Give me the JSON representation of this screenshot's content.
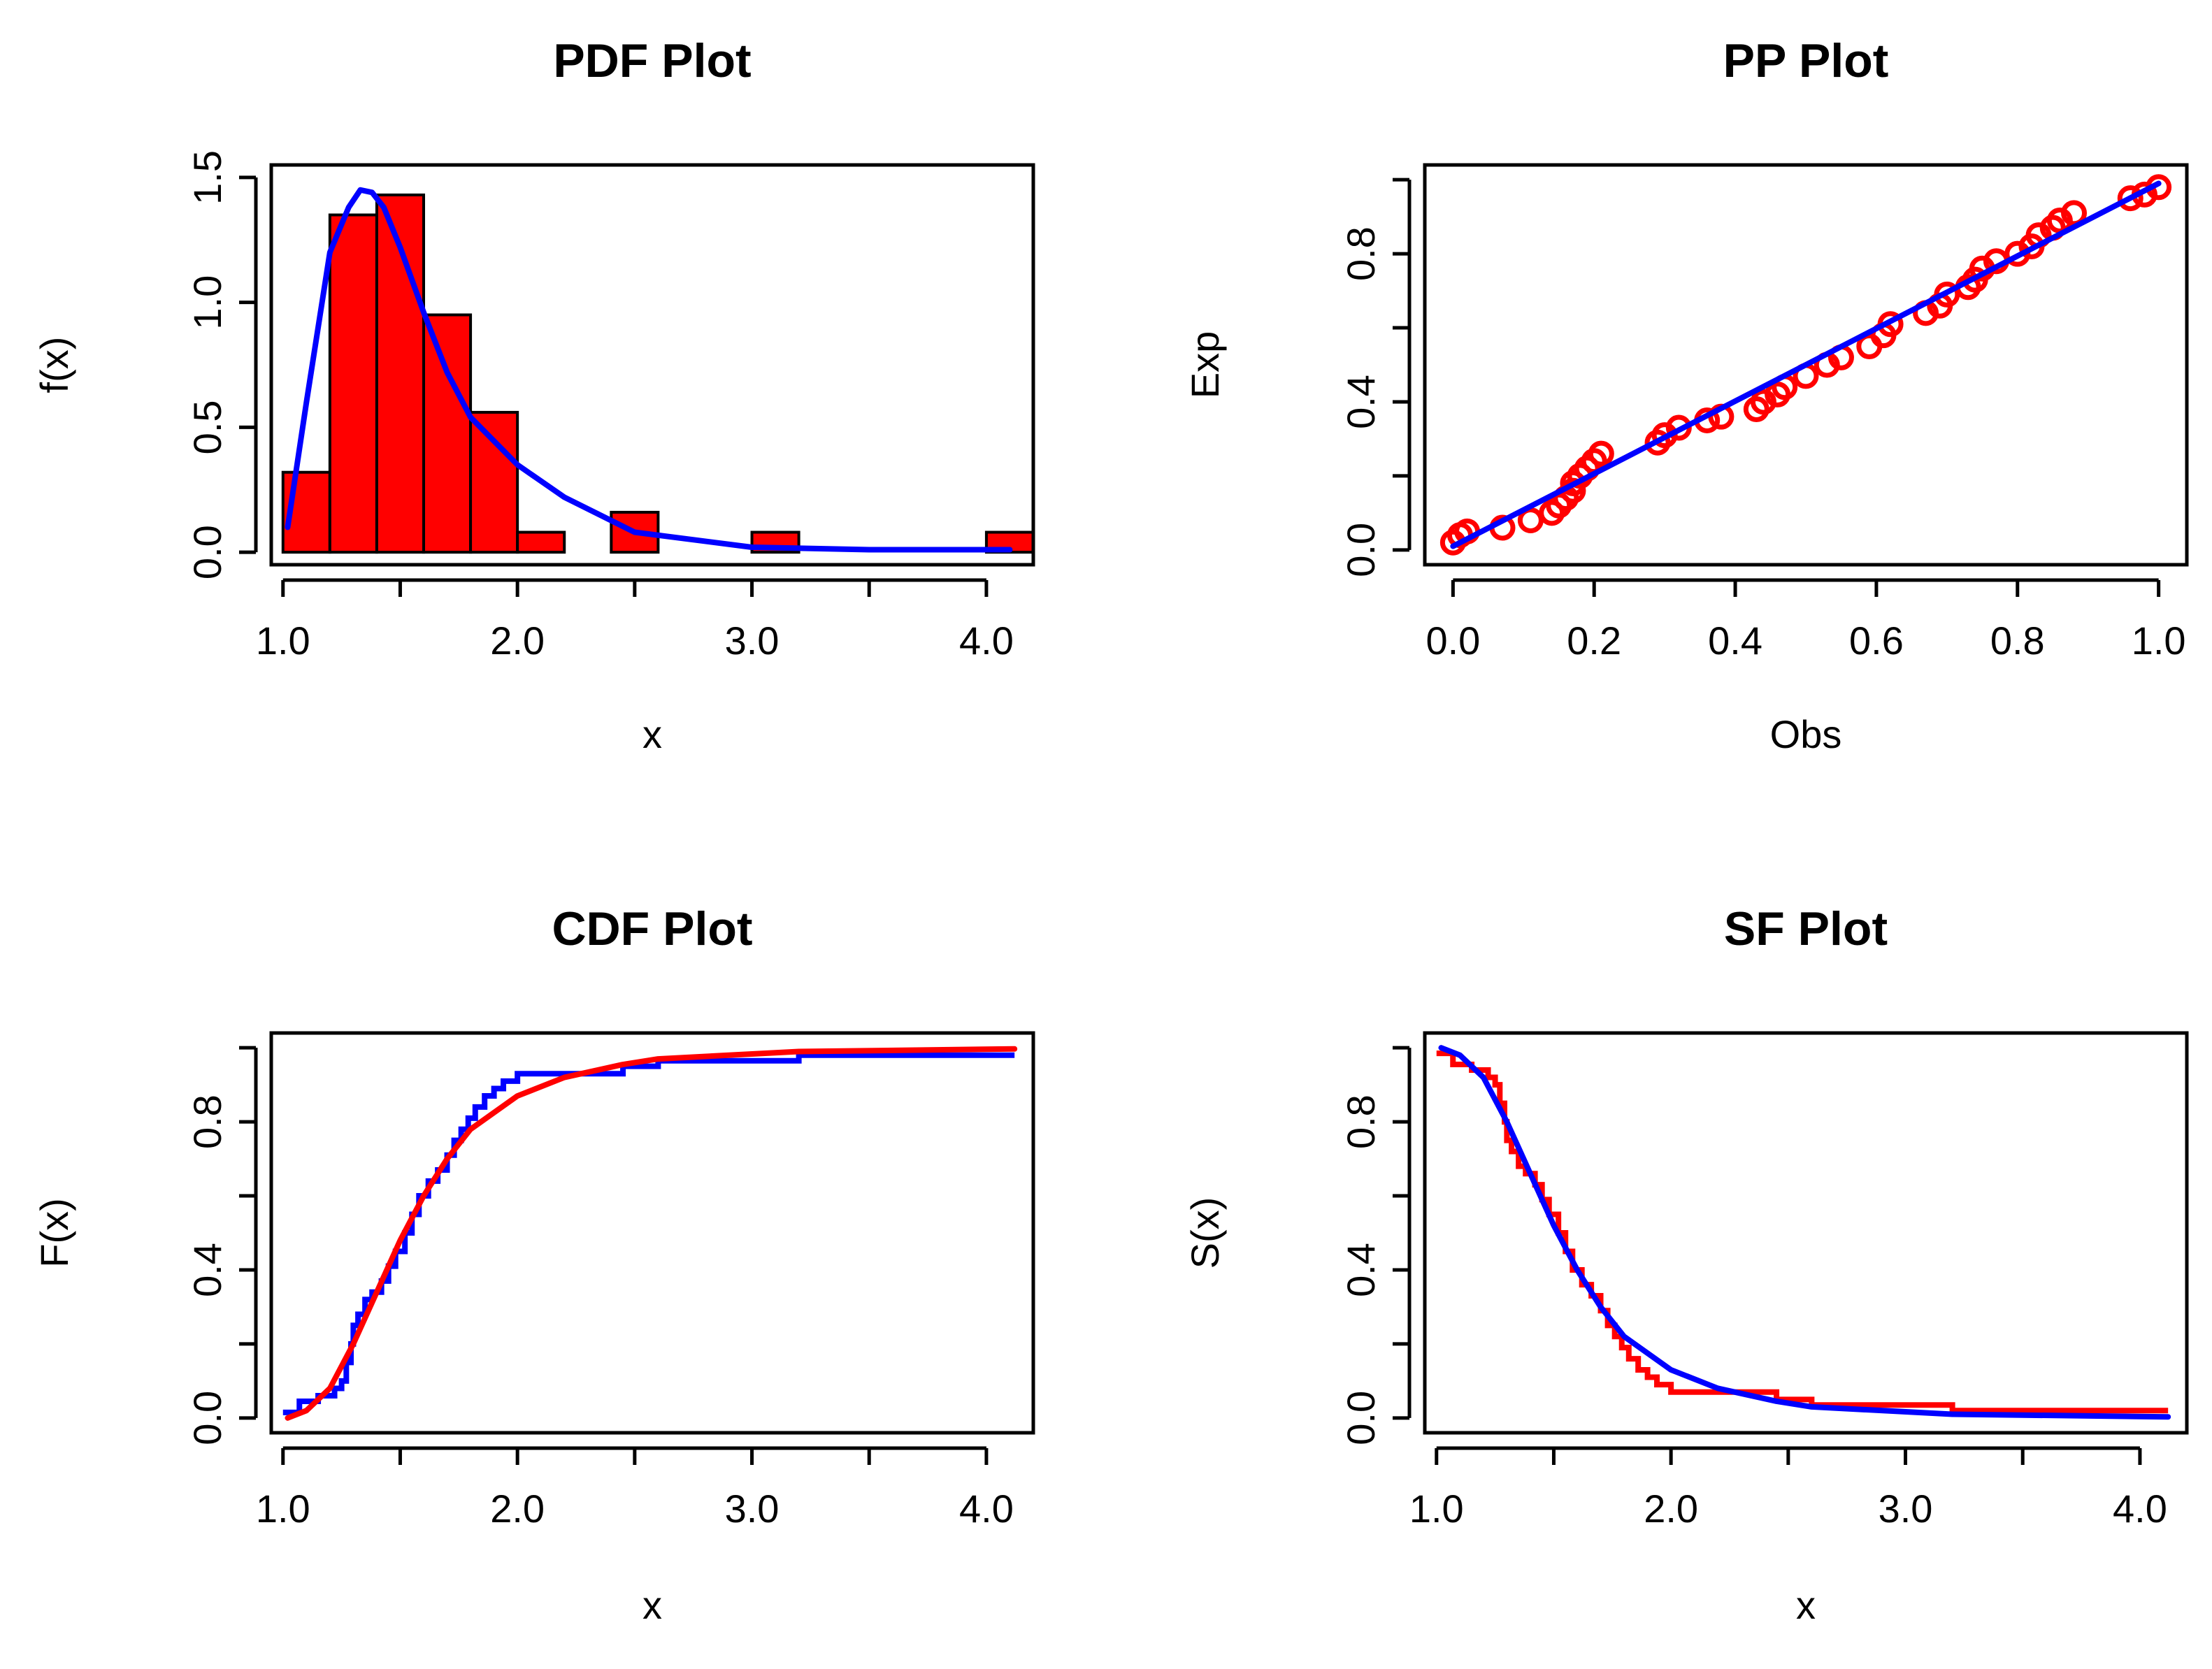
{
  "chart_data": [
    {
      "id": "pdf",
      "type": "bar",
      "title": "PDF Plot",
      "xlabel": "x",
      "ylabel": "f(x)",
      "xlim": [
        0.95,
        4.2
      ],
      "ylim": [
        -0.05,
        1.55
      ],
      "xticks": [
        1.0,
        1.5,
        2.0,
        2.5,
        3.0,
        3.5,
        4.0
      ],
      "xtick_labels": [
        "1.0",
        "",
        "2.0",
        "",
        "3.0",
        "",
        "4.0"
      ],
      "yticks": [
        0.0,
        0.5,
        1.0,
        1.5
      ],
      "ytick_labels": [
        "0.0",
        "0.5",
        "1.0",
        "1.5"
      ],
      "histogram": {
        "color": "#ff0000",
        "bins": [
          {
            "x0": 1.0,
            "x1": 1.2,
            "density": 0.32
          },
          {
            "x0": 1.2,
            "x1": 1.4,
            "density": 1.35
          },
          {
            "x0": 1.4,
            "x1": 1.6,
            "density": 1.43
          },
          {
            "x0": 1.6,
            "x1": 1.8,
            "density": 0.95
          },
          {
            "x0": 1.8,
            "x1": 2.0,
            "density": 0.56
          },
          {
            "x0": 2.0,
            "x1": 2.2,
            "density": 0.08
          },
          {
            "x0": 2.2,
            "x1": 2.4,
            "density": 0.0
          },
          {
            "x0": 2.4,
            "x1": 2.6,
            "density": 0.16
          },
          {
            "x0": 2.6,
            "x1": 2.8,
            "density": 0.0
          },
          {
            "x0": 2.8,
            "x1": 3.0,
            "density": 0.0
          },
          {
            "x0": 3.0,
            "x1": 3.2,
            "density": 0.08
          },
          {
            "x0": 3.2,
            "x1": 3.4,
            "density": 0.0
          },
          {
            "x0": 3.4,
            "x1": 3.6,
            "density": 0.0
          },
          {
            "x0": 3.6,
            "x1": 3.8,
            "density": 0.0
          },
          {
            "x0": 3.8,
            "x1": 4.0,
            "density": 0.0
          },
          {
            "x0": 4.0,
            "x1": 4.2,
            "density": 0.08
          }
        ]
      },
      "series": [
        {
          "name": "fitted density",
          "style": "line",
          "color": "#0000ff",
          "x": [
            1.02,
            1.1,
            1.2,
            1.28,
            1.33,
            1.38,
            1.43,
            1.5,
            1.6,
            1.7,
            1.8,
            2.0,
            2.2,
            2.5,
            3.0,
            3.5,
            4.1
          ],
          "y": [
            0.1,
            0.6,
            1.2,
            1.38,
            1.45,
            1.44,
            1.38,
            1.22,
            0.96,
            0.72,
            0.54,
            0.35,
            0.22,
            0.08,
            0.02,
            0.01,
            0.01
          ]
        }
      ]
    },
    {
      "id": "pp",
      "type": "scatter",
      "title": "PP Plot",
      "xlabel": "Obs",
      "ylabel": "Exp",
      "xlim": [
        -0.04,
        1.04
      ],
      "ylim": [
        -0.04,
        1.04
      ],
      "xticks": [
        0.0,
        0.2,
        0.4,
        0.6,
        0.8,
        1.0
      ],
      "xtick_labels": [
        "0.0",
        "0.2",
        "0.4",
        "0.6",
        "0.8",
        "1.0"
      ],
      "yticks": [
        0.0,
        0.2,
        0.4,
        0.6,
        0.8,
        1.0
      ],
      "ytick_labels": [
        "0.0",
        "",
        "0.4",
        "",
        "0.8",
        ""
      ],
      "series": [
        {
          "name": "points",
          "style": "points",
          "color": "#ff0000",
          "x": [
            0.0,
            0.01,
            0.02,
            0.07,
            0.11,
            0.14,
            0.15,
            0.16,
            0.17,
            0.17,
            0.18,
            0.19,
            0.2,
            0.21,
            0.29,
            0.3,
            0.32,
            0.36,
            0.38,
            0.43,
            0.44,
            0.46,
            0.47,
            0.5,
            0.53,
            0.55,
            0.59,
            0.61,
            0.62,
            0.67,
            0.69,
            0.7,
            0.73,
            0.74,
            0.75,
            0.77,
            0.8,
            0.82,
            0.83,
            0.85,
            0.86,
            0.88,
            0.96,
            0.98,
            1.0
          ],
          "y": [
            0.02,
            0.04,
            0.05,
            0.06,
            0.08,
            0.1,
            0.12,
            0.14,
            0.16,
            0.18,
            0.2,
            0.22,
            0.24,
            0.26,
            0.29,
            0.31,
            0.33,
            0.35,
            0.36,
            0.38,
            0.4,
            0.42,
            0.44,
            0.47,
            0.5,
            0.52,
            0.55,
            0.58,
            0.61,
            0.64,
            0.66,
            0.69,
            0.71,
            0.73,
            0.76,
            0.78,
            0.8,
            0.82,
            0.85,
            0.87,
            0.89,
            0.91,
            0.95,
            0.96,
            0.98
          ]
        },
        {
          "name": "reference line",
          "style": "line",
          "color": "#0000ff",
          "x": [
            0.0,
            1.0
          ],
          "y": [
            0.01,
            0.99
          ]
        }
      ]
    },
    {
      "id": "cdf",
      "type": "line",
      "title": "CDF Plot",
      "xlabel": "x",
      "ylabel": "F(x)",
      "xlim": [
        0.95,
        4.2
      ],
      "ylim": [
        -0.04,
        1.04
      ],
      "xticks": [
        1.0,
        1.5,
        2.0,
        2.5,
        3.0,
        3.5,
        4.0
      ],
      "xtick_labels": [
        "1.0",
        "",
        "2.0",
        "",
        "3.0",
        "",
        "4.0"
      ],
      "yticks": [
        0.0,
        0.2,
        0.4,
        0.6,
        0.8,
        1.0
      ],
      "ytick_labels": [
        "0.0",
        "",
        "0.4",
        "",
        "0.8",
        ""
      ],
      "series": [
        {
          "name": "empirical CDF",
          "style": "step",
          "color": "#0000ff",
          "x": [
            1.0,
            1.07,
            1.15,
            1.22,
            1.25,
            1.27,
            1.29,
            1.3,
            1.32,
            1.35,
            1.38,
            1.42,
            1.45,
            1.48,
            1.52,
            1.55,
            1.58,
            1.62,
            1.66,
            1.7,
            1.73,
            1.76,
            1.79,
            1.82,
            1.86,
            1.9,
            1.94,
            2.0,
            2.45,
            2.6,
            3.2,
            4.12
          ],
          "y": [
            0.015,
            0.045,
            0.06,
            0.08,
            0.1,
            0.15,
            0.2,
            0.25,
            0.28,
            0.32,
            0.34,
            0.37,
            0.41,
            0.45,
            0.5,
            0.55,
            0.6,
            0.64,
            0.67,
            0.71,
            0.75,
            0.78,
            0.81,
            0.84,
            0.87,
            0.89,
            0.91,
            0.93,
            0.95,
            0.965,
            0.98,
            0.98
          ]
        },
        {
          "name": "fitted CDF",
          "style": "line",
          "color": "#ff0000",
          "x": [
            1.02,
            1.1,
            1.2,
            1.3,
            1.4,
            1.5,
            1.6,
            1.7,
            1.8,
            2.0,
            2.2,
            2.45,
            2.6,
            3.2,
            4.12
          ],
          "y": [
            0.0,
            0.02,
            0.08,
            0.2,
            0.34,
            0.48,
            0.6,
            0.7,
            0.78,
            0.87,
            0.92,
            0.955,
            0.97,
            0.99,
            0.997
          ]
        }
      ]
    },
    {
      "id": "sf",
      "type": "line",
      "title": "SF Plot",
      "xlabel": "x",
      "ylabel": "S(x)",
      "xlim": [
        0.95,
        4.2
      ],
      "ylim": [
        -0.04,
        1.04
      ],
      "xticks": [
        1.0,
        1.5,
        2.0,
        2.5,
        3.0,
        3.5,
        4.0
      ],
      "xtick_labels": [
        "1.0",
        "",
        "2.0",
        "",
        "3.0",
        "",
        "4.0"
      ],
      "yticks": [
        0.0,
        0.2,
        0.4,
        0.6,
        0.8,
        1.0
      ],
      "ytick_labels": [
        "0.0",
        "",
        "0.4",
        "",
        "0.8",
        ""
      ],
      "series": [
        {
          "name": "empirical SF",
          "style": "step",
          "color": "#ff0000",
          "x": [
            1.0,
            1.07,
            1.15,
            1.22,
            1.25,
            1.27,
            1.29,
            1.3,
            1.32,
            1.35,
            1.38,
            1.42,
            1.45,
            1.48,
            1.52,
            1.55,
            1.58,
            1.62,
            1.66,
            1.7,
            1.73,
            1.76,
            1.79,
            1.82,
            1.86,
            1.9,
            1.94,
            2.0,
            2.45,
            2.6,
            3.2,
            4.12
          ],
          "y": [
            0.985,
            0.955,
            0.94,
            0.92,
            0.9,
            0.85,
            0.8,
            0.75,
            0.72,
            0.68,
            0.66,
            0.63,
            0.59,
            0.55,
            0.5,
            0.45,
            0.4,
            0.36,
            0.33,
            0.29,
            0.25,
            0.22,
            0.19,
            0.16,
            0.13,
            0.11,
            0.09,
            0.07,
            0.05,
            0.035,
            0.02,
            0.02
          ]
        },
        {
          "name": "fitted SF",
          "style": "line",
          "color": "#0000ff",
          "x": [
            1.02,
            1.1,
            1.2,
            1.3,
            1.4,
            1.5,
            1.6,
            1.7,
            1.8,
            2.0,
            2.2,
            2.45,
            2.6,
            3.2,
            4.12
          ],
          "y": [
            1.0,
            0.98,
            0.92,
            0.8,
            0.66,
            0.52,
            0.4,
            0.3,
            0.22,
            0.13,
            0.08,
            0.045,
            0.03,
            0.01,
            0.003
          ]
        }
      ]
    }
  ]
}
